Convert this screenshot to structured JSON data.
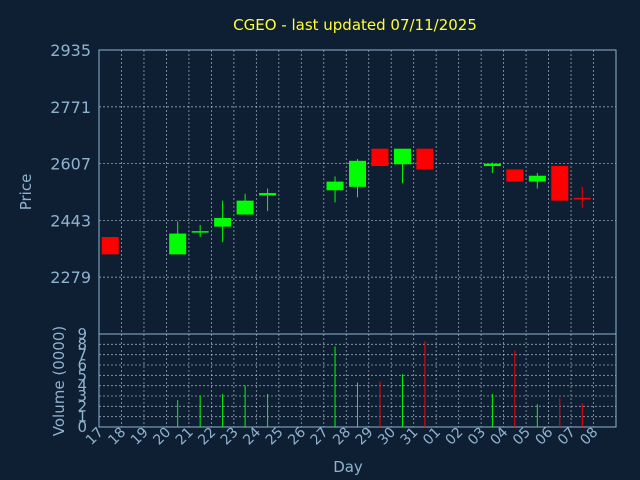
{
  "chart_data": {
    "type": "candlestick",
    "title": "CGEO - last updated 07/11/2025",
    "ylabel": "Price",
    "volume_label": "Volume (0000)",
    "xlabel": "Day",
    "ylim": [
      2115,
      2935
    ],
    "yticks": [
      2279,
      2443,
      2607,
      2771,
      2935
    ],
    "volume_ylim": [
      0,
      9
    ],
    "volume_yticks": [
      0,
      1,
      2,
      3,
      4,
      5,
      6,
      7,
      8,
      9
    ],
    "categories": [
      "17",
      "18",
      "19",
      "20",
      "21",
      "22",
      "23",
      "24",
      "25",
      "26",
      "27",
      "28",
      "29",
      "30",
      "31",
      "01",
      "02",
      "03",
      "04",
      "05",
      "06",
      "07",
      "08"
    ],
    "colors": {
      "up": "#00ff00",
      "down": "#ff0000",
      "background": "#0f1f33",
      "text": "#8fb3cf",
      "title": "#ffff33"
    },
    "candles": [
      {
        "day": "17",
        "open": 2395,
        "high": 2395,
        "low": 2345,
        "close": 2345,
        "volume": 0
      },
      {
        "day": "20",
        "open": 2345,
        "high": 2440,
        "low": 2345,
        "close": 2405,
        "volume": 2.6
      },
      {
        "day": "21",
        "open": 2410,
        "high": 2430,
        "low": 2395,
        "close": 2412,
        "volume": 3.0
      },
      {
        "day": "22",
        "open": 2425,
        "high": 2500,
        "low": 2380,
        "close": 2450,
        "volume": 3.2
      },
      {
        "day": "23",
        "open": 2460,
        "high": 2520,
        "low": 2460,
        "close": 2500,
        "volume": 4.0
      },
      {
        "day": "24",
        "open": 2515,
        "high": 2535,
        "low": 2470,
        "close": 2522,
        "volume": 3.2
      },
      {
        "day": "27",
        "open": 2530,
        "high": 2570,
        "low": 2495,
        "close": 2555,
        "volume": 7.8
      },
      {
        "day": "28",
        "open": 2540,
        "high": 2620,
        "low": 2510,
        "close": 2615,
        "volume": 4.3
      },
      {
        "day": "29",
        "open": 2650,
        "high": 2650,
        "low": 2600,
        "close": 2600,
        "volume": 4.4
      },
      {
        "day": "30",
        "open": 2605,
        "high": 2650,
        "low": 2550,
        "close": 2650,
        "volume": 5.1
      },
      {
        "day": "31",
        "open": 2650,
        "high": 2650,
        "low": 2590,
        "close": 2590,
        "volume": 8.3
      },
      {
        "day": "03",
        "open": 2600,
        "high": 2610,
        "low": 2580,
        "close": 2607,
        "volume": 3.2
      },
      {
        "day": "04",
        "open": 2590,
        "high": 2590,
        "low": 2555,
        "close": 2555,
        "volume": 7.4
      },
      {
        "day": "05",
        "open": 2555,
        "high": 2580,
        "low": 2535,
        "close": 2572,
        "volume": 2.2
      },
      {
        "day": "06",
        "open": 2600,
        "high": 2600,
        "low": 2500,
        "close": 2500,
        "volume": 2.8
      },
      {
        "day": "07",
        "open": 2508,
        "high": 2540,
        "low": 2480,
        "close": 2505,
        "volume": 2.3
      }
    ]
  }
}
